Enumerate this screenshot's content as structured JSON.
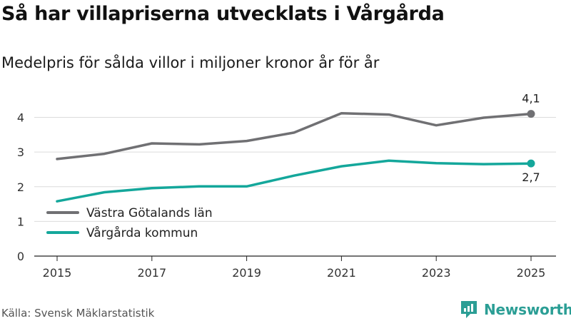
{
  "title": "Så har villapriserna utvecklats i Vårgårda",
  "subtitle": "Medelpris för sålda villor i miljoner kronor år för år",
  "source": "Källa: Svensk Mäklarstatistik",
  "brand": "Newsworthy",
  "colors": {
    "region": "#707073",
    "municipality": "#14a79b",
    "brand": "#2b9e95"
  },
  "chart_data": {
    "type": "line",
    "x": [
      2015,
      2016,
      2017,
      2018,
      2019,
      2020,
      2021,
      2022,
      2023,
      2024,
      2025
    ],
    "xticks": [
      "2015",
      "2017",
      "2019",
      "2021",
      "2023",
      "2025"
    ],
    "yticks": [
      "0",
      "1",
      "2",
      "3",
      "4"
    ],
    "ylim": [
      0,
      4.5
    ],
    "grid": true,
    "legend_position": "bottom-left",
    "series": [
      {
        "name": "Västra Götalands län",
        "color": "#707073",
        "values": [
          2.8,
          2.95,
          3.25,
          3.22,
          3.32,
          3.56,
          4.12,
          4.08,
          3.77,
          3.99,
          4.1
        ],
        "end_label": "4,1"
      },
      {
        "name": "Vårgårda kommun",
        "color": "#14a79b",
        "values": [
          1.58,
          1.84,
          1.96,
          2.01,
          2.01,
          2.32,
          2.59,
          2.75,
          2.68,
          2.65,
          2.67
        ],
        "end_label": "2,7"
      }
    ]
  }
}
